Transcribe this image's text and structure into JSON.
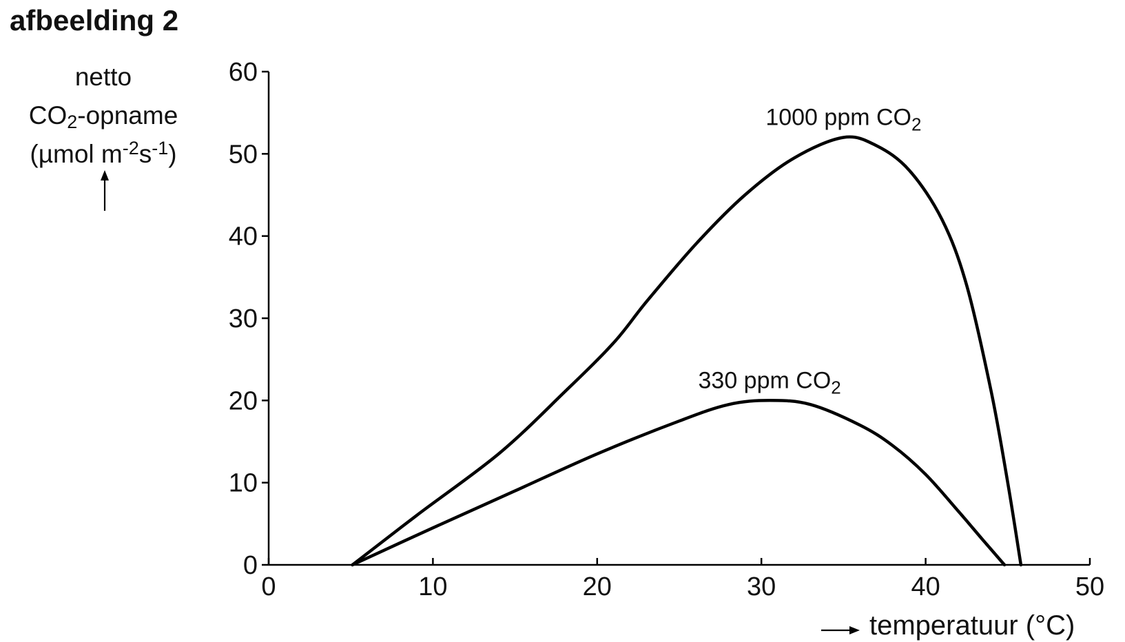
{
  "title": "afbeelding 2",
  "ylabel": {
    "line1": "netto",
    "line2_pre": "CO",
    "line2_sub": "2",
    "line2_post": "-opname",
    "line3_a": "(µmol m",
    "line3_sup1": "-2",
    "line3_b": "s",
    "line3_sup2": "-1",
    "line3_c": ")"
  },
  "xlabel": "temperatuur (°C)",
  "chart_data": {
    "type": "line",
    "title": "afbeelding 2",
    "xlabel": "temperatuur (°C)",
    "ylabel": "netto CO2-opname (µmol m-2s-1)",
    "xlim": [
      0,
      50
    ],
    "ylim": [
      0,
      60
    ],
    "xticks": [
      0,
      10,
      20,
      30,
      40,
      50
    ],
    "yticks": [
      0,
      10,
      20,
      30,
      40,
      50,
      60
    ],
    "grid": false,
    "series": [
      {
        "name": "1000 ppm CO2",
        "label_main": "1000 ppm CO",
        "label_sub": "2",
        "x": [
          5.1,
          9,
          14,
          18,
          21,
          23,
          26,
          29,
          32,
          35,
          37,
          39,
          41,
          42.5,
          44,
          45,
          45.8
        ],
        "y": [
          0,
          6,
          13.5,
          21,
          27,
          32,
          39,
          45,
          49.5,
          52,
          51,
          48,
          42,
          34,
          21,
          10,
          0
        ]
      },
      {
        "name": "330 ppm CO2",
        "label_main": "330 ppm CO",
        "label_sub": "2",
        "x": [
          5.1,
          10,
          15,
          20,
          25,
          28,
          30.5,
          33,
          36,
          38,
          40,
          42,
          43.5,
          44.8
        ],
        "y": [
          0,
          4.5,
          9,
          13.5,
          17.5,
          19.5,
          20,
          19.5,
          17,
          14.5,
          11,
          6.5,
          3,
          0
        ]
      }
    ]
  }
}
